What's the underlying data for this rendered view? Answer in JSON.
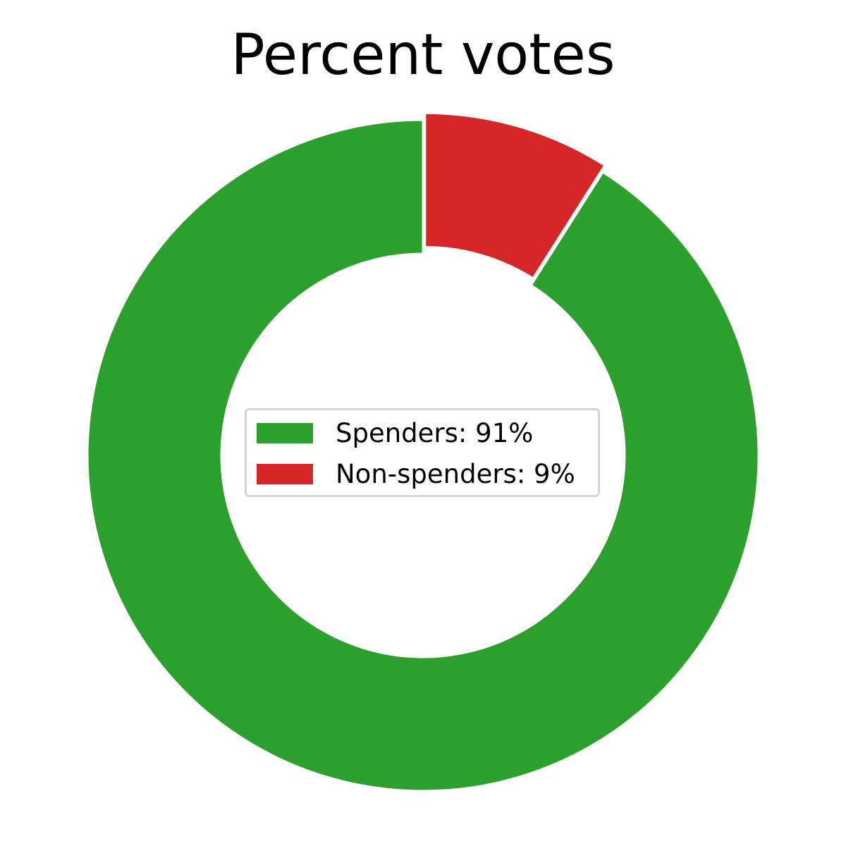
{
  "chart_data": {
    "type": "pie",
    "variant": "donut",
    "title": "Percent votes",
    "slices": [
      {
        "label": "Spenders: 91%",
        "value": 91,
        "color": "#2ca02c",
        "exploded": false
      },
      {
        "label": "Non-spenders: 9%",
        "value": 9,
        "color": "#d62728",
        "exploded": true
      }
    ],
    "start_angle_deg": 90,
    "direction": "clockwise for Non-spenders from top",
    "edge_color": "#ffffff",
    "legend_placement": "center"
  }
}
